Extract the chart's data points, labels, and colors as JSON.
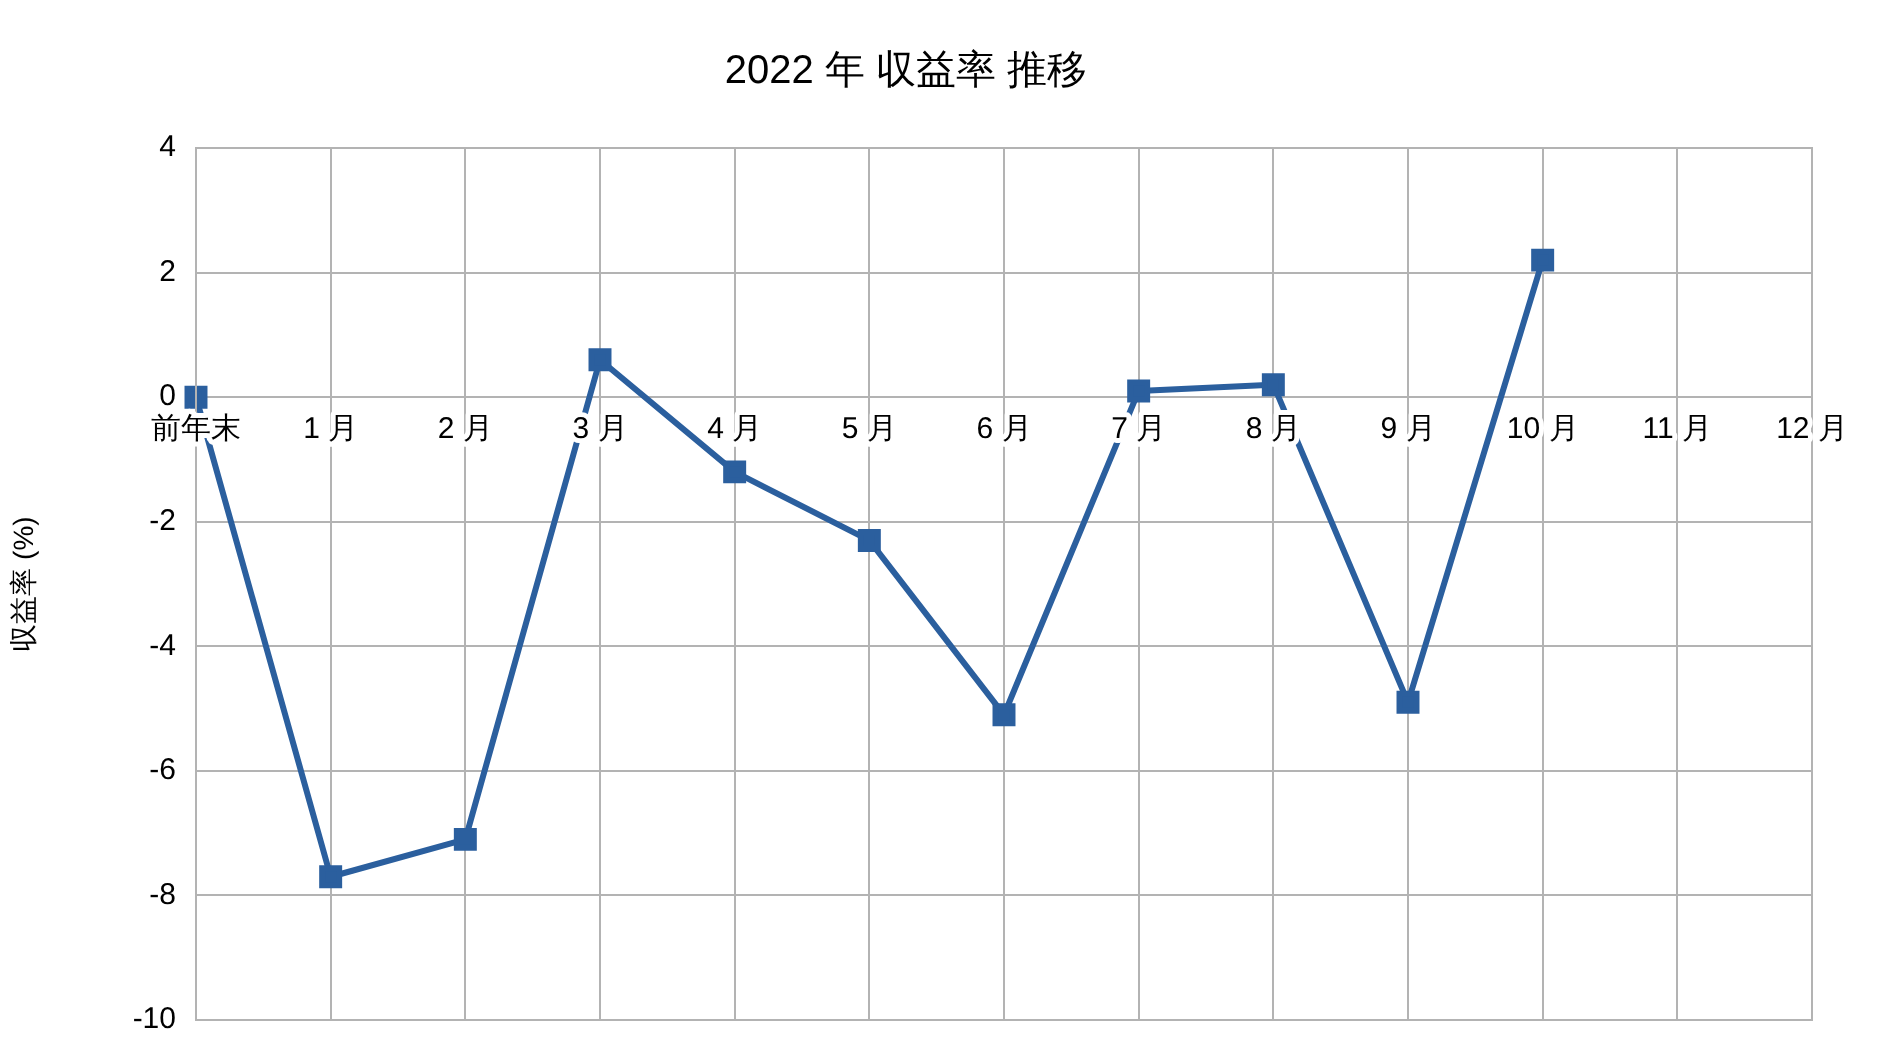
{
  "chart_data": {
    "type": "line",
    "title": "2022 年 収益率 推移",
    "ylabel": "収益率 (%)",
    "categories": [
      "前年末",
      "1 月",
      "2 月",
      "3 月",
      "4 月",
      "5 月",
      "6 月",
      "7 月",
      "8 月",
      "9 月",
      "10 月",
      "11 月",
      "12 月"
    ],
    "series": [
      {
        "color": "#2b5f9e",
        "values": [
          0,
          -7.7,
          -7.1,
          0.6,
          -1.2,
          -2.3,
          -5.1,
          0.1,
          0.2,
          -4.9,
          2.2,
          null,
          null
        ]
      }
    ],
    "ylim": [
      -10,
      4
    ],
    "yticks": [
      -10,
      -8,
      -6,
      -4,
      -2,
      0,
      2,
      4
    ],
    "grid": true,
    "legend": false,
    "marker": "square",
    "line_style": "solid"
  }
}
